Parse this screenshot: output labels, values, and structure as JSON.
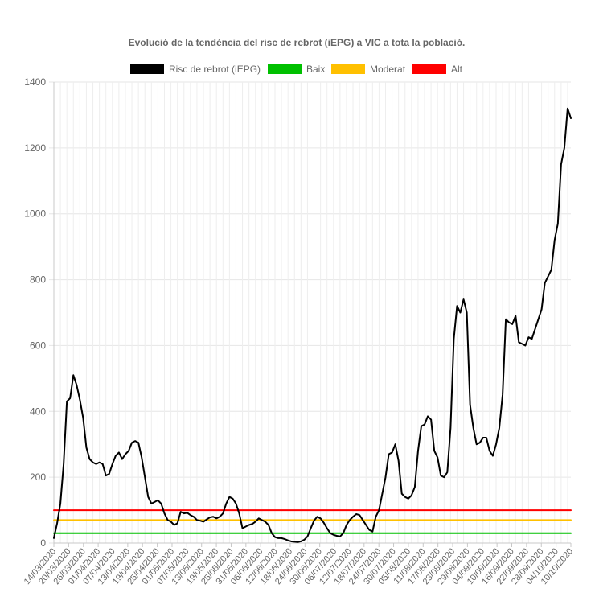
{
  "chart_data": {
    "type": "line",
    "title": "Evolució de la tendència del risc de rebrot (iEPG) a VIC a tota la població.",
    "xlabel": "",
    "ylabel": "",
    "ylim": [
      0,
      1400
    ],
    "yticks": [
      0,
      200,
      400,
      600,
      800,
      1000,
      1200,
      1400
    ],
    "grid": true,
    "legend_position": "top",
    "categories": [
      "14/03/2020",
      "20/03/2020",
      "26/03/2020",
      "01/04/2020",
      "07/04/2020",
      "13/04/2020",
      "19/04/2020",
      "25/04/2020",
      "01/05/2020",
      "07/05/2020",
      "13/05/2020",
      "19/05/2020",
      "25/05/2020",
      "31/05/2020",
      "06/06/2020",
      "12/06/2020",
      "18/06/2020",
      "24/06/2020",
      "30/06/2020",
      "06/07/2020",
      "12/07/2020",
      "18/07/2020",
      "24/07/2020",
      "30/07/2020",
      "05/08/2020",
      "11/08/2020",
      "17/08/2020",
      "23/08/2020",
      "29/08/2020",
      "04/09/2020",
      "10/09/2020",
      "16/09/2020",
      "22/09/2020",
      "28/09/2020",
      "04/10/2020",
      "10/10/2020"
    ],
    "series": [
      {
        "name": "Risc de rebrot (iEPG)",
        "color": "#000000",
        "values": [
          [
            0,
            15
          ],
          [
            1,
            60
          ],
          [
            2,
            120
          ],
          [
            3,
            240
          ],
          [
            4,
            430
          ],
          [
            5,
            440
          ],
          [
            6,
            510
          ],
          [
            7,
            480
          ],
          [
            8,
            435
          ],
          [
            9,
            380
          ],
          [
            10,
            290
          ],
          [
            11,
            255
          ],
          [
            12,
            245
          ],
          [
            13,
            240
          ],
          [
            14,
            245
          ],
          [
            15,
            240
          ],
          [
            16,
            205
          ],
          [
            17,
            210
          ],
          [
            18,
            240
          ],
          [
            19,
            265
          ],
          [
            20,
            275
          ],
          [
            21,
            255
          ],
          [
            22,
            270
          ],
          [
            23,
            280
          ],
          [
            24,
            305
          ],
          [
            25,
            310
          ],
          [
            26,
            305
          ],
          [
            27,
            260
          ],
          [
            28,
            200
          ],
          [
            29,
            140
          ],
          [
            30,
            120
          ],
          [
            31,
            125
          ],
          [
            32,
            130
          ],
          [
            33,
            120
          ],
          [
            34,
            90
          ],
          [
            35,
            70
          ],
          [
            36,
            65
          ],
          [
            37,
            55
          ],
          [
            38,
            60
          ],
          [
            39,
            95
          ],
          [
            40,
            90
          ],
          [
            41,
            92
          ],
          [
            42,
            85
          ],
          [
            43,
            80
          ],
          [
            44,
            70
          ],
          [
            45,
            68
          ],
          [
            46,
            65
          ],
          [
            47,
            72
          ],
          [
            48,
            78
          ],
          [
            49,
            80
          ],
          [
            50,
            75
          ],
          [
            51,
            80
          ],
          [
            52,
            90
          ],
          [
            53,
            120
          ],
          [
            54,
            140
          ],
          [
            55,
            135
          ],
          [
            56,
            120
          ],
          [
            57,
            90
          ],
          [
            58,
            45
          ],
          [
            59,
            50
          ],
          [
            60,
            55
          ],
          [
            61,
            58
          ],
          [
            62,
            65
          ],
          [
            63,
            75
          ],
          [
            64,
            70
          ],
          [
            65,
            65
          ],
          [
            66,
            55
          ],
          [
            67,
            30
          ],
          [
            68,
            18
          ],
          [
            69,
            15
          ],
          [
            70,
            15
          ],
          [
            71,
            12
          ],
          [
            72,
            8
          ],
          [
            73,
            5
          ],
          [
            74,
            4
          ],
          [
            75,
            3
          ],
          [
            76,
            5
          ],
          [
            77,
            10
          ],
          [
            78,
            20
          ],
          [
            79,
            45
          ],
          [
            80,
            68
          ],
          [
            81,
            80
          ],
          [
            82,
            75
          ],
          [
            83,
            62
          ],
          [
            84,
            45
          ],
          [
            85,
            30
          ],
          [
            86,
            25
          ],
          [
            87,
            22
          ],
          [
            88,
            20
          ],
          [
            89,
            30
          ],
          [
            90,
            55
          ],
          [
            91,
            70
          ],
          [
            92,
            80
          ],
          [
            93,
            88
          ],
          [
            94,
            85
          ],
          [
            95,
            70
          ],
          [
            96,
            55
          ],
          [
            97,
            40
          ],
          [
            98,
            35
          ],
          [
            99,
            80
          ],
          [
            100,
            100
          ],
          [
            101,
            150
          ],
          [
            102,
            200
          ],
          [
            103,
            270
          ],
          [
            104,
            275
          ],
          [
            105,
            300
          ],
          [
            106,
            250
          ],
          [
            107,
            150
          ],
          [
            108,
            140
          ],
          [
            109,
            135
          ],
          [
            110,
            145
          ],
          [
            111,
            170
          ],
          [
            112,
            280
          ],
          [
            113,
            355
          ],
          [
            114,
            360
          ],
          [
            115,
            385
          ],
          [
            116,
            375
          ],
          [
            117,
            280
          ],
          [
            118,
            260
          ],
          [
            119,
            205
          ],
          [
            120,
            200
          ],
          [
            121,
            215
          ],
          [
            122,
            350
          ],
          [
            123,
            620
          ],
          [
            124,
            720
          ],
          [
            125,
            700
          ],
          [
            126,
            740
          ],
          [
            127,
            700
          ],
          [
            128,
            420
          ],
          [
            129,
            350
          ],
          [
            130,
            300
          ],
          [
            131,
            305
          ],
          [
            132,
            320
          ],
          [
            133,
            320
          ],
          [
            134,
            280
          ],
          [
            135,
            265
          ],
          [
            136,
            300
          ],
          [
            137,
            350
          ],
          [
            138,
            450
          ],
          [
            139,
            680
          ],
          [
            140,
            670
          ],
          [
            141,
            665
          ],
          [
            142,
            690
          ],
          [
            143,
            610
          ],
          [
            144,
            605
          ],
          [
            145,
            600
          ],
          [
            146,
            625
          ],
          [
            147,
            620
          ],
          [
            148,
            650
          ],
          [
            149,
            680
          ],
          [
            150,
            710
          ],
          [
            151,
            790
          ],
          [
            152,
            810
          ],
          [
            153,
            830
          ],
          [
            154,
            920
          ],
          [
            155,
            970
          ],
          [
            156,
            1150
          ],
          [
            157,
            1200
          ],
          [
            158,
            1320
          ],
          [
            159,
            1290
          ]
        ]
      },
      {
        "name": "Baix",
        "color": "#00c000",
        "values": [
          [
            0,
            30
          ],
          [
            159,
            30
          ]
        ]
      },
      {
        "name": "Moderat",
        "color": "#ffc000",
        "values": [
          [
            0,
            70
          ],
          [
            159,
            70
          ]
        ]
      },
      {
        "name": "Alt",
        "color": "#ff0000",
        "values": [
          [
            0,
            100
          ],
          [
            159,
            100
          ]
        ]
      }
    ]
  }
}
